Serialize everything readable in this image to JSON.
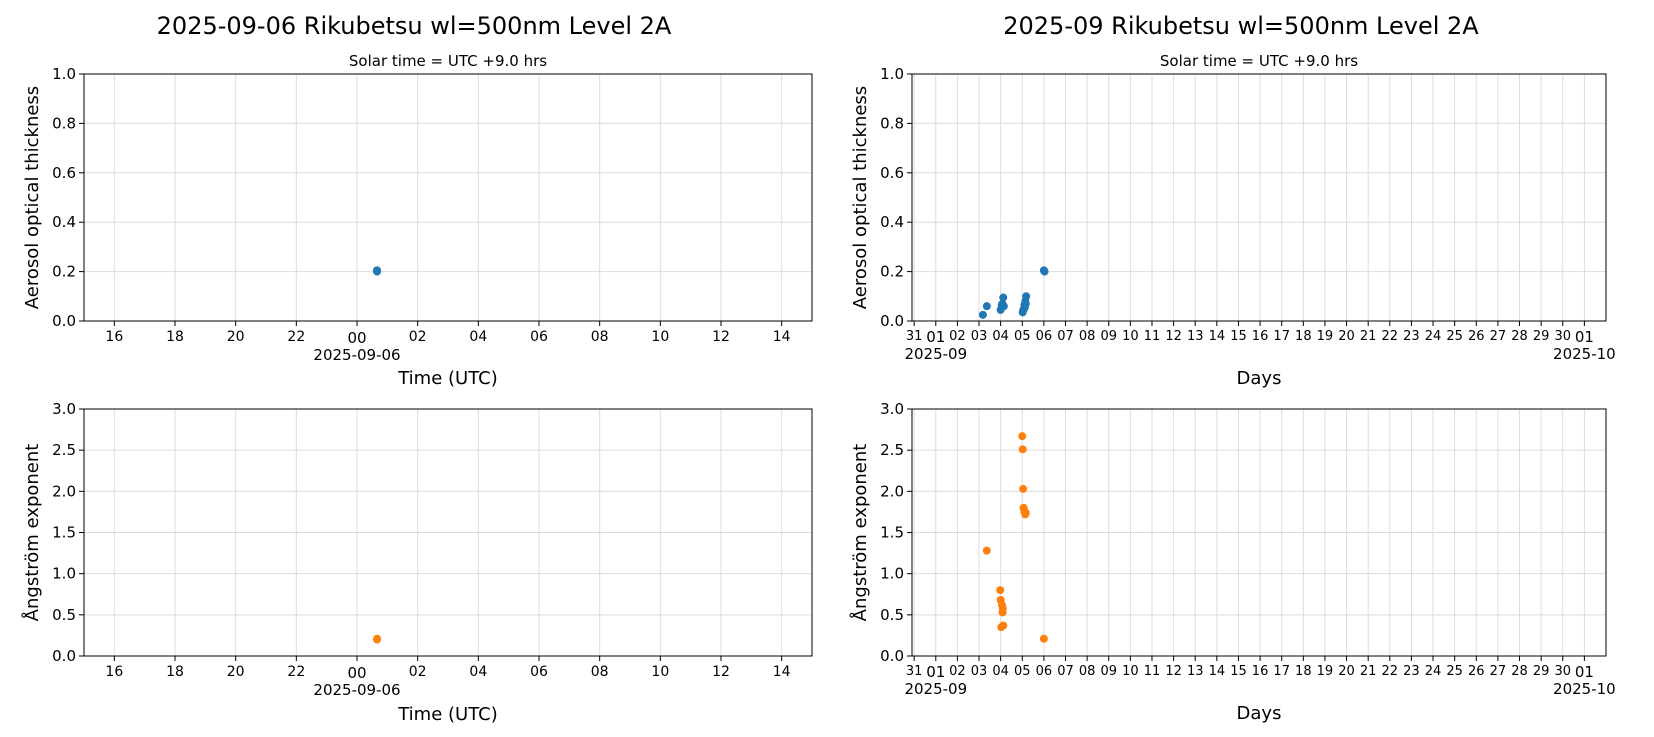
{
  "chart_data": [
    {
      "id": "aot-day",
      "type": "scatter",
      "title": "2025-09-06  Rikubetsu  wl=500nm  Level 2A",
      "subtitle": "Solar time = UTC +9.0 hrs",
      "xlabel": "Time (UTC)",
      "ylabel": "Aerosol optical thickness",
      "xlim_hours": [
        -9.0,
        15.0
      ],
      "ylim": [
        0.0,
        1.0
      ],
      "yticks": [
        "0.0",
        "0.2",
        "0.4",
        "0.6",
        "0.8",
        "1.0"
      ],
      "xticks": [
        {
          "h": -8,
          "label": "16"
        },
        {
          "h": -6,
          "label": "18"
        },
        {
          "h": -4,
          "label": "20"
        },
        {
          "h": -2,
          "label": "22"
        },
        {
          "h": 0,
          "label": "00",
          "sub": "2025-09-06"
        },
        {
          "h": 2,
          "label": "02"
        },
        {
          "h": 4,
          "label": "04"
        },
        {
          "h": 6,
          "label": "06"
        },
        {
          "h": 8,
          "label": "08"
        },
        {
          "h": 10,
          "label": "10"
        },
        {
          "h": 12,
          "label": "12"
        },
        {
          "h": 14,
          "label": "14"
        }
      ],
      "color": "#1f77b4",
      "x": [
        0.66,
        0.66
      ],
      "y": [
        0.205,
        0.2
      ]
    },
    {
      "id": "aot-month",
      "type": "scatter",
      "title": "2025-09  Rikubetsu  wl=500nm  Level 2A",
      "subtitle": "Solar time = UTC +9.0 hrs",
      "xlabel": "Days",
      "ylabel": "Aerosol optical thickness",
      "xlim_days": [
        -1.1,
        31.0
      ],
      "ylim": [
        0.0,
        1.0
      ],
      "yticks": [
        "0.0",
        "0.2",
        "0.4",
        "0.6",
        "0.8",
        "1.0"
      ],
      "xtick_days": [
        "31",
        "01",
        "02",
        "03",
        "04",
        "05",
        "06",
        "07",
        "08",
        "09",
        "10",
        "11",
        "12",
        "13",
        "14",
        "15",
        "16",
        "17",
        "18",
        "19",
        "20",
        "21",
        "22",
        "23",
        "24",
        "25",
        "26",
        "27",
        "28",
        "29",
        "30",
        "01"
      ],
      "x_sublabel_left": "2025-09",
      "x_sublabel_right": "2025-10",
      "color": "#1f77b4",
      "x": [
        2.18,
        2.36,
        3.0,
        3.05,
        3.08,
        3.12,
        3.15,
        4.02,
        4.05,
        4.08,
        4.1,
        4.12,
        4.14,
        4.16,
        4.18,
        5.0,
        5.03
      ],
      "y": [
        0.025,
        0.06,
        0.045,
        0.065,
        0.07,
        0.095,
        0.06,
        0.035,
        0.045,
        0.05,
        0.065,
        0.055,
        0.08,
        0.07,
        0.1,
        0.205,
        0.2
      ]
    },
    {
      "id": "ae-day",
      "type": "scatter",
      "title": "",
      "xlabel": "Time (UTC)",
      "ylabel": "Ångström exponent",
      "xlim_hours": [
        -9.0,
        15.0
      ],
      "ylim": [
        0.0,
        3.0
      ],
      "yticks": [
        "0.0",
        "0.5",
        "1.0",
        "1.5",
        "2.0",
        "2.5",
        "3.0"
      ],
      "xticks": [
        {
          "h": -8,
          "label": "16"
        },
        {
          "h": -6,
          "label": "18"
        },
        {
          "h": -4,
          "label": "20"
        },
        {
          "h": -2,
          "label": "22"
        },
        {
          "h": 0,
          "label": "00",
          "sub": "2025-09-06"
        },
        {
          "h": 2,
          "label": "02"
        },
        {
          "h": 4,
          "label": "04"
        },
        {
          "h": 6,
          "label": "06"
        },
        {
          "h": 8,
          "label": "08"
        },
        {
          "h": 10,
          "label": "10"
        },
        {
          "h": 12,
          "label": "12"
        },
        {
          "h": 14,
          "label": "14"
        }
      ],
      "color": "#ff7f0e",
      "x": [
        0.66,
        0.66
      ],
      "y": [
        0.21,
        0.2
      ]
    },
    {
      "id": "ae-month",
      "type": "scatter",
      "title": "",
      "xlabel": "Days",
      "ylabel": "Ångström exponent",
      "xlim_days": [
        -1.1,
        31.0
      ],
      "ylim": [
        0.0,
        3.0
      ],
      "yticks": [
        "0.0",
        "0.5",
        "1.0",
        "1.5",
        "2.0",
        "2.5",
        "3.0"
      ],
      "xtick_days": [
        "31",
        "01",
        "02",
        "03",
        "04",
        "05",
        "06",
        "07",
        "08",
        "09",
        "10",
        "11",
        "12",
        "13",
        "14",
        "15",
        "16",
        "17",
        "18",
        "19",
        "20",
        "21",
        "22",
        "23",
        "24",
        "25",
        "26",
        "27",
        "28",
        "29",
        "30",
        "01"
      ],
      "x_sublabel_left": "2025-09",
      "x_sublabel_right": "2025-10",
      "color": "#ff7f0e",
      "x": [
        2.36,
        2.98,
        3.0,
        3.03,
        3.06,
        3.09,
        3.1,
        3.12,
        4.0,
        4.02,
        4.04,
        4.06,
        4.08,
        4.1,
        4.14,
        4.16,
        5.0
      ],
      "y": [
        1.28,
        0.8,
        0.68,
        0.35,
        0.62,
        0.53,
        0.58,
        0.37,
        2.67,
        2.51,
        2.03,
        1.8,
        1.78,
        1.75,
        1.72,
        1.74,
        0.21
      ]
    }
  ]
}
